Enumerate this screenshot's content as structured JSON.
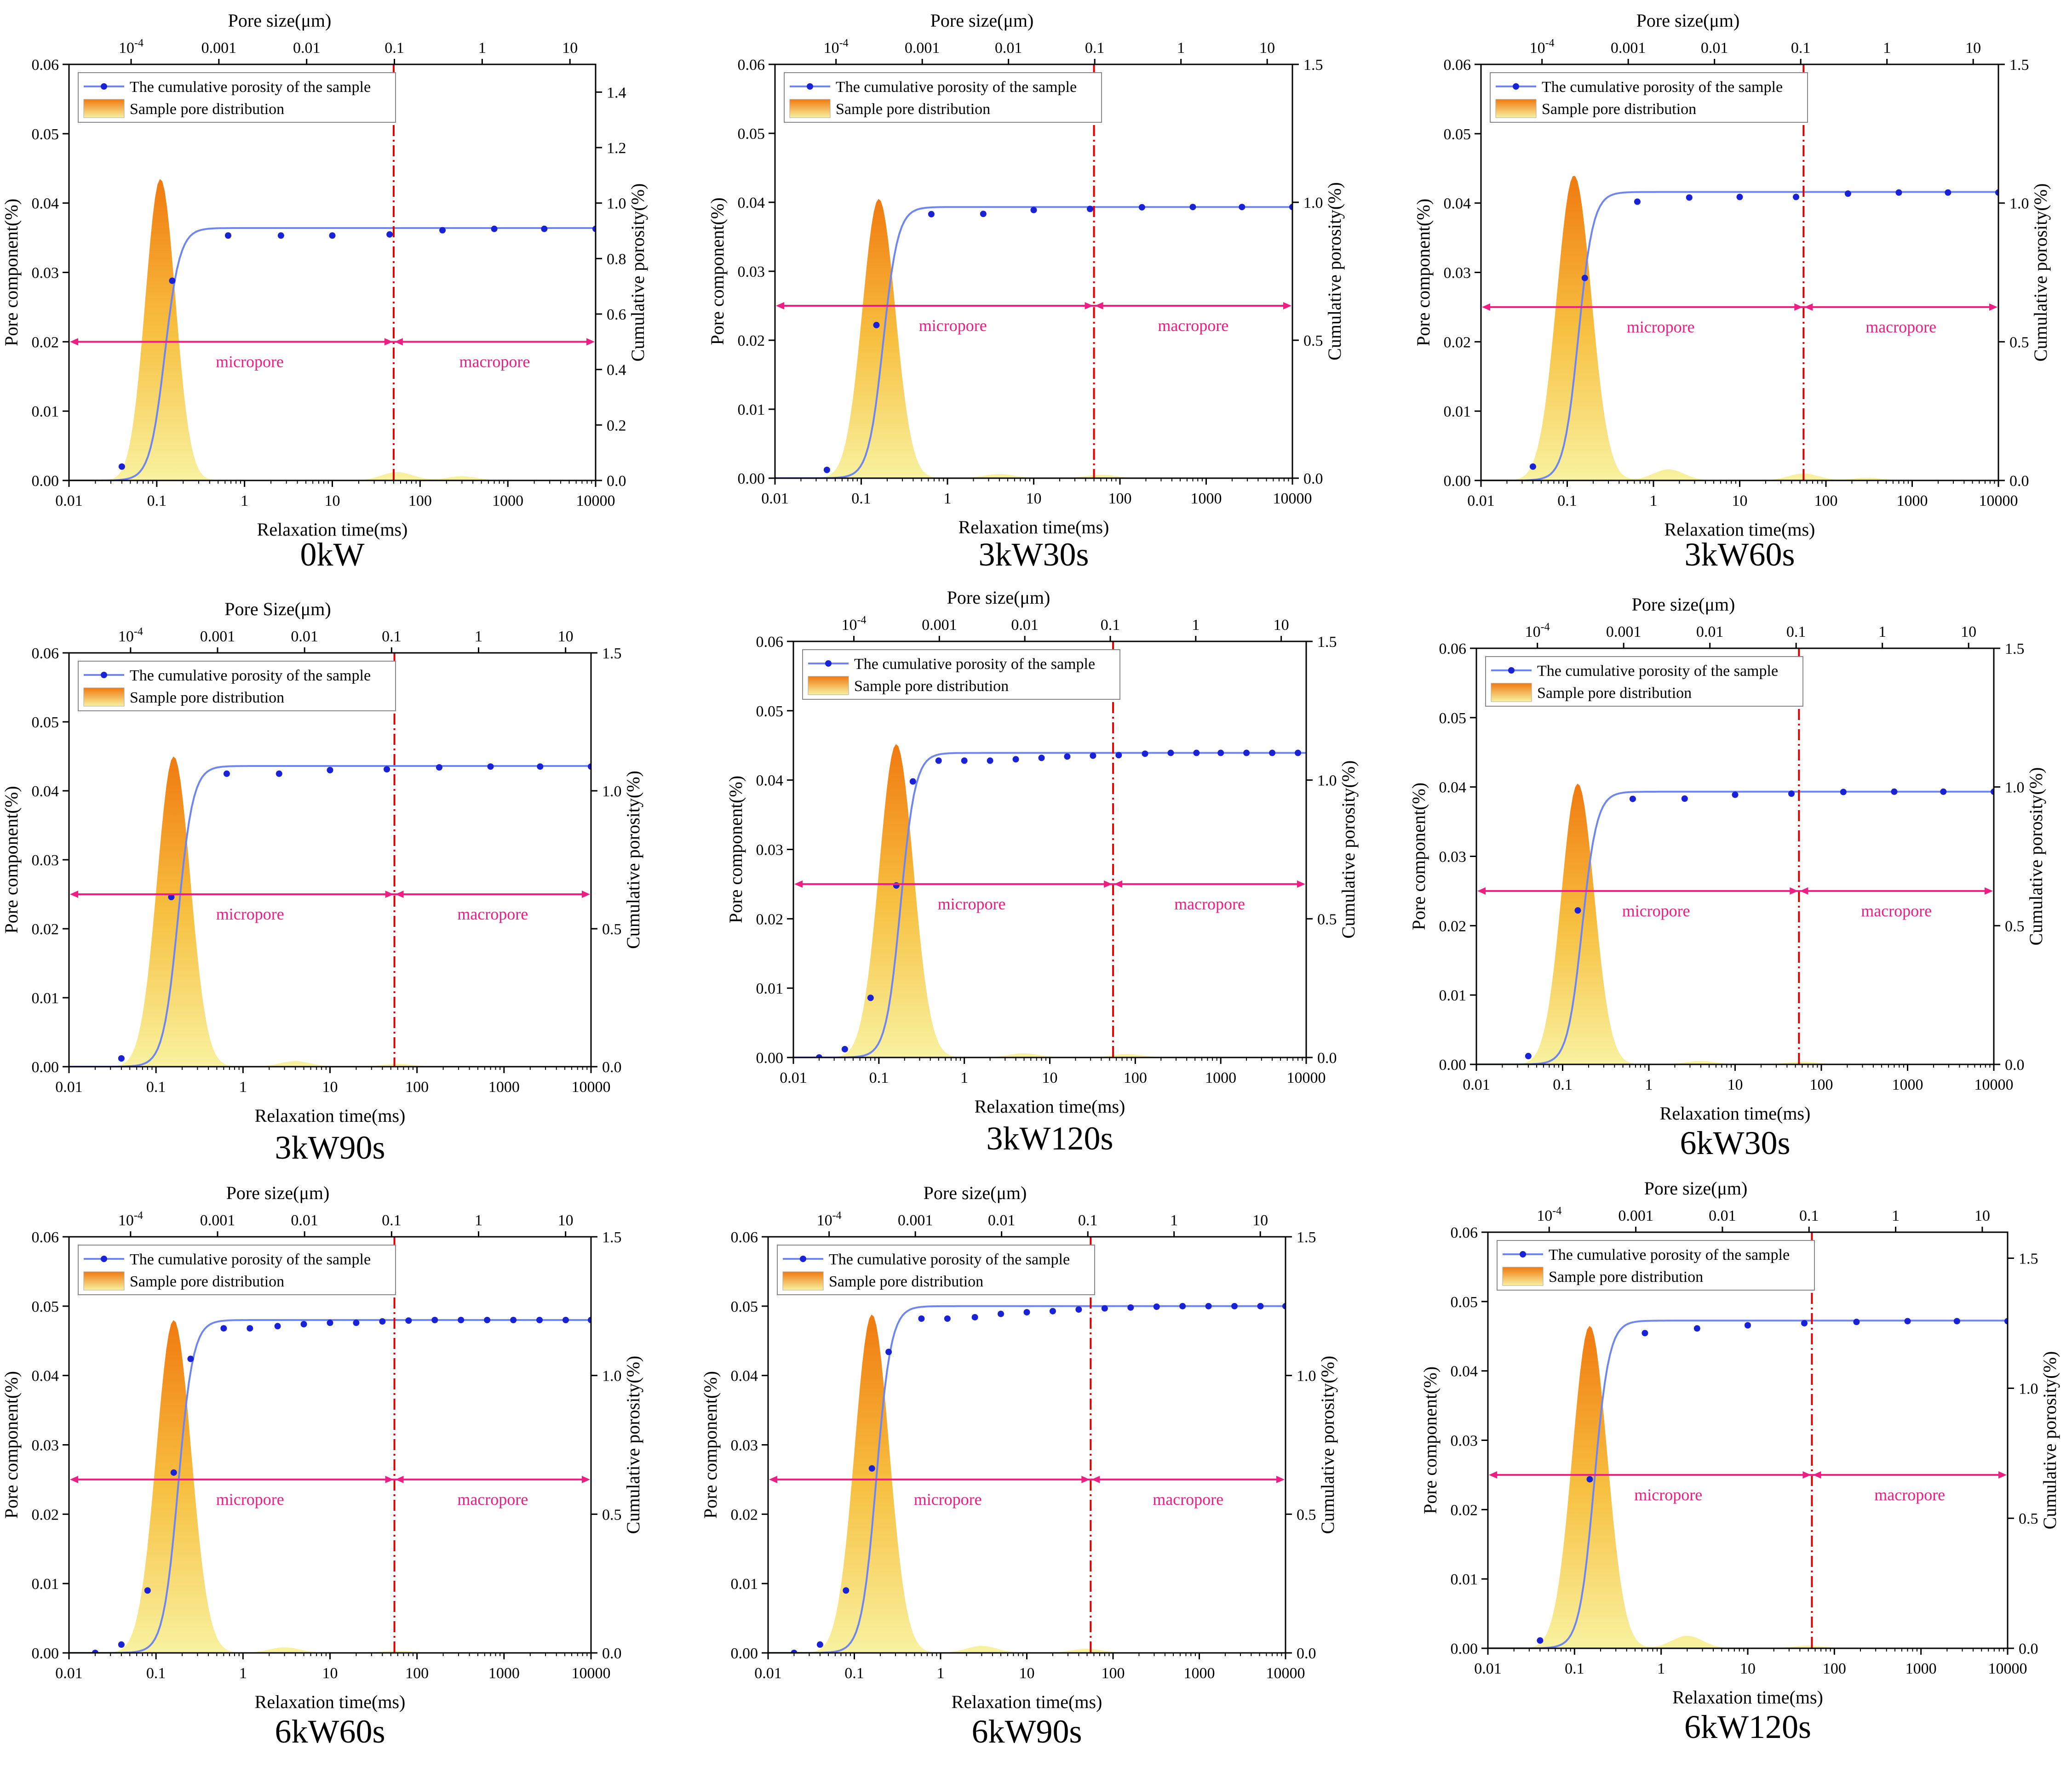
{
  "chart_data": [
    {
      "type": "area+line",
      "panel_label": "0kW",
      "top_axis_title": "Pore size(μm)",
      "top_ticks": [
        "10-4",
        "0.001",
        "0.01",
        "0.1",
        "1",
        "10"
      ],
      "xlabel": "Relaxation time(ms)",
      "x_scale": "log",
      "xlim": [
        0.01,
        10000
      ],
      "x_ticks": [
        "0.01",
        "0.1",
        "1",
        "10",
        "100",
        "1000",
        "10000"
      ],
      "ylabel_left": "Pore component(%)",
      "ylim_left": [
        0,
        0.06
      ],
      "y_ticks_left": [
        "0.00",
        "0.01",
        "0.02",
        "0.03",
        "0.04",
        "0.05",
        "0.06"
      ],
      "ylabel_right": "Cumulative porosity(%)",
      "ylim_right": [
        0,
        1.5
      ],
      "y_ticks_right": [
        "0.0",
        "0.2",
        "0.4",
        "0.6",
        "0.8",
        "1.0",
        "1.2",
        "1.4"
      ],
      "legend": [
        "The cumulative porosity of the sample",
        "Sample pore distribution"
      ],
      "divider_x": 50,
      "arrow_y": 0.02,
      "labels": [
        "micropore",
        "macropore"
      ],
      "peak_x": 0.11,
      "peak_y": 0.0435,
      "peak_width": 0.17,
      "small_peaks": [
        [
          55,
          0.0012
        ],
        [
          300,
          0.0006
        ]
      ],
      "cumulative_final": 0.91,
      "cumulative_points": [
        [
          0.04,
          0.05
        ],
        [
          0.15,
          0.72
        ],
        [
          0.65,
          0.883
        ],
        [
          2.6,
          0.883
        ],
        [
          10,
          0.883
        ],
        [
          45,
          0.887
        ],
        [
          180,
          0.902
        ],
        [
          700,
          0.907
        ],
        [
          2600,
          0.907
        ],
        [
          10000,
          0.907
        ]
      ]
    },
    {
      "type": "area+line",
      "panel_label": "3kW30s",
      "top_axis_title": "Pore size(μm)",
      "top_ticks": [
        "10-4",
        "0.001",
        "0.01",
        "0.1",
        "1",
        "10"
      ],
      "xlabel": "Relaxation time(ms)",
      "x_scale": "log",
      "xlim": [
        0.01,
        10000
      ],
      "x_ticks": [
        "0.01",
        "0.1",
        "1",
        "10",
        "100",
        "1000",
        "10000"
      ],
      "ylabel_left": "Pore component(%)",
      "ylim_left": [
        0,
        0.06
      ],
      "y_ticks_left": [
        "0.00",
        "0.01",
        "0.02",
        "0.03",
        "0.04",
        "0.05",
        "0.06"
      ],
      "ylabel_right": "Cumulative porosity(%)",
      "ylim_right": [
        0,
        1.5
      ],
      "y_ticks_right": [
        "0.0",
        "0.5",
        "1.0",
        "1.5"
      ],
      "legend": [
        "The cumulative porosity of the sample",
        "Sample pore distribution"
      ],
      "divider_x": 50,
      "arrow_y": 0.025,
      "labels": [
        "micropore",
        "macropore"
      ],
      "peak_x": 0.16,
      "peak_y": 0.0405,
      "peak_width": 0.19,
      "small_peaks": [
        [
          4,
          0.0006
        ],
        [
          60,
          0.0005
        ]
      ],
      "cumulative_final": 0.983,
      "cumulative_points": [
        [
          0.04,
          0.03
        ],
        [
          0.15,
          0.555
        ],
        [
          0.65,
          0.957
        ],
        [
          2.6,
          0.958
        ],
        [
          10,
          0.972
        ],
        [
          45,
          0.976
        ],
        [
          180,
          0.982
        ],
        [
          700,
          0.983
        ],
        [
          2600,
          0.983
        ],
        [
          10000,
          0.983
        ]
      ]
    },
    {
      "type": "area+line",
      "panel_label": "3kW60s",
      "top_axis_title": "Pore size(μm)",
      "top_ticks": [
        "10-4",
        "0.001",
        "0.01",
        "0.1",
        "1",
        "10"
      ],
      "xlabel": "Relaxation time(ms)",
      "x_scale": "log",
      "xlim": [
        0.01,
        10000
      ],
      "x_ticks": [
        "0.01",
        "0.1",
        "1",
        "10",
        "100",
        "1000",
        "10000"
      ],
      "ylabel_left": "Pore component(%)",
      "ylim_left": [
        0,
        0.06
      ],
      "y_ticks_left": [
        "0.00",
        "0.01",
        "0.02",
        "0.03",
        "0.04",
        "0.05",
        "0.06"
      ],
      "ylabel_right": "Cumulative porosity(%)",
      "ylim_right": [
        0,
        1.5
      ],
      "y_ticks_right": [
        "0.0",
        "0.5",
        "1.0",
        "1.5"
      ],
      "legend": [
        "The cumulative porosity of the sample",
        "Sample pore distribution"
      ],
      "divider_x": 55,
      "arrow_y": 0.025,
      "labels": [
        "micropore",
        "macropore"
      ],
      "peak_x": 0.12,
      "peak_y": 0.044,
      "peak_width": 0.2,
      "small_peaks": [
        [
          1.5,
          0.0016
        ],
        [
          55,
          0.001
        ],
        [
          300,
          0.0004
        ]
      ],
      "cumulative_final": 1.04,
      "cumulative_points": [
        [
          0.04,
          0.05
        ],
        [
          0.16,
          0.73
        ],
        [
          0.65,
          1.005
        ],
        [
          2.6,
          1.02
        ],
        [
          10,
          1.022
        ],
        [
          45,
          1.022
        ],
        [
          180,
          1.034
        ],
        [
          700,
          1.038
        ],
        [
          2600,
          1.038
        ],
        [
          10000,
          1.038
        ]
      ]
    },
    {
      "type": "area+line",
      "panel_label": "3kW90s",
      "top_axis_title": "Pore Size(μm)",
      "top_ticks": [
        "10-4",
        "0.001",
        "0.01",
        "0.1",
        "1",
        "10"
      ],
      "xlabel": "Relaxation time(ms)",
      "x_scale": "log",
      "xlim": [
        0.01,
        10000
      ],
      "x_ticks": [
        "0.01",
        "0.1",
        "1",
        "10",
        "100",
        "1000",
        "10000"
      ],
      "ylabel_left": "Pore component(%)",
      "ylim_left": [
        0,
        0.06
      ],
      "y_ticks_left": [
        "0.00",
        "0.01",
        "0.02",
        "0.03",
        "0.04",
        "0.05",
        "0.06"
      ],
      "ylabel_right": "Cumulative porosity(%)",
      "ylim_right": [
        0,
        1.5
      ],
      "y_ticks_right": [
        "0.0",
        "0.5",
        "1.0",
        "1.5"
      ],
      "legend": [
        "The cumulative porosity of the sample",
        "Sample pore distribution"
      ],
      "divider_x": 55,
      "arrow_y": 0.025,
      "labels": [
        "micropore",
        "macropore"
      ],
      "peak_x": 0.16,
      "peak_y": 0.045,
      "peak_width": 0.19,
      "small_peaks": [
        [
          4,
          0.0008
        ],
        [
          60,
          0.0004
        ]
      ],
      "cumulative_final": 1.09,
      "cumulative_points": [
        [
          0.04,
          0.03
        ],
        [
          0.15,
          0.615
        ],
        [
          0.65,
          1.062
        ],
        [
          2.6,
          1.062
        ],
        [
          10,
          1.075
        ],
        [
          45,
          1.078
        ],
        [
          180,
          1.085
        ],
        [
          700,
          1.088
        ],
        [
          2600,
          1.088
        ],
        [
          10000,
          1.088
        ]
      ]
    },
    {
      "type": "area+line",
      "panel_label": "3kW120s",
      "top_axis_title": "Pore size(μm)",
      "top_ticks": [
        "10-4",
        "0.001",
        "0.01",
        "0.1",
        "1",
        "10"
      ],
      "xlabel": "Relaxation time(ms)",
      "x_scale": "log",
      "xlim": [
        0.01,
        10000
      ],
      "x_ticks": [
        "0.01",
        "0.1",
        "1",
        "10",
        "100",
        "1000",
        "10000"
      ],
      "ylabel_left": "Pore component(%)",
      "ylim_left": [
        0,
        0.06
      ],
      "y_ticks_left": [
        "0.00",
        "0.01",
        "0.02",
        "0.03",
        "0.04",
        "0.05",
        "0.06"
      ],
      "ylabel_right": "Cumulative porosity(%)",
      "ylim_right": [
        0,
        1.5
      ],
      "y_ticks_right": [
        "0.0",
        "0.5",
        "1.0",
        "1.5"
      ],
      "legend": [
        "The cumulative porosity of the sample",
        "Sample pore distribution"
      ],
      "divider_x": 55,
      "arrow_y": 0.025,
      "labels": [
        "micropore",
        "macropore"
      ],
      "peak_x": 0.16,
      "peak_y": 0.0452,
      "peak_width": 0.2,
      "small_peaks": [
        [
          5,
          0.0006
        ],
        [
          80,
          0.0005
        ]
      ],
      "cumulative_final": 1.098,
      "cumulative_points": [
        [
          0.02,
          0.0
        ],
        [
          0.04,
          0.03
        ],
        [
          0.08,
          0.215
        ],
        [
          0.16,
          0.62
        ],
        [
          0.25,
          0.995
        ],
        [
          0.5,
          1.07
        ],
        [
          1,
          1.07
        ],
        [
          2,
          1.07
        ],
        [
          4,
          1.075
        ],
        [
          8,
          1.08
        ],
        [
          16,
          1.085
        ],
        [
          32,
          1.088
        ],
        [
          64,
          1.09
        ],
        [
          130,
          1.095
        ],
        [
          260,
          1.098
        ],
        [
          520,
          1.098
        ],
        [
          1000,
          1.098
        ],
        [
          2000,
          1.098
        ],
        [
          4000,
          1.098
        ],
        [
          8000,
          1.098
        ]
      ]
    },
    {
      "type": "area+line",
      "panel_label": "6kW30s",
      "top_axis_title": "Pore size(μm)",
      "top_ticks": [
        "10-4",
        "0.001",
        "0.01",
        "0.1",
        "1",
        "10"
      ],
      "xlabel": "Relaxation time(ms)",
      "x_scale": "log",
      "xlim": [
        0.01,
        10000
      ],
      "x_ticks": [
        "0.01",
        "0.1",
        "1",
        "10",
        "100",
        "1000",
        "10000"
      ],
      "ylabel_left": "Pore component(%)",
      "ylim_left": [
        0,
        0.06
      ],
      "y_ticks_left": [
        "0.00",
        "0.01",
        "0.02",
        "0.03",
        "0.04",
        "0.05",
        "0.06"
      ],
      "ylabel_right": "Cumulative porosity(%)",
      "ylim_right": [
        0,
        1.5
      ],
      "y_ticks_right": [
        "0.0",
        "0.5",
        "1.0",
        "1.5"
      ],
      "legend": [
        "The cumulative porosity of the sample",
        "Sample pore distribution"
      ],
      "divider_x": 55,
      "arrow_y": 0.025,
      "labels": [
        "micropore",
        "macropore"
      ],
      "peak_x": 0.15,
      "peak_y": 0.0405,
      "peak_width": 0.19,
      "small_peaks": [
        [
          4,
          0.0005
        ],
        [
          60,
          0.0004
        ]
      ],
      "cumulative_final": 0.983,
      "cumulative_points": [
        [
          0.04,
          0.03
        ],
        [
          0.15,
          0.555
        ],
        [
          0.65,
          0.957
        ],
        [
          2.6,
          0.958
        ],
        [
          10,
          0.972
        ],
        [
          45,
          0.976
        ],
        [
          180,
          0.982
        ],
        [
          700,
          0.983
        ],
        [
          2600,
          0.983
        ],
        [
          10000,
          0.983
        ]
      ]
    },
    {
      "type": "area+line",
      "panel_label": "6kW60s",
      "top_axis_title": "Pore size(μm)",
      "top_ticks": [
        "10-4",
        "0.001",
        "0.01",
        "0.1",
        "1",
        "10"
      ],
      "xlabel": "Relaxation time(ms)",
      "x_scale": "log",
      "xlim": [
        0.01,
        10000
      ],
      "x_ticks": [
        "0.01",
        "0.1",
        "1",
        "10",
        "100",
        "1000",
        "10000"
      ],
      "ylabel_left": "Pore component(%)",
      "ylim_left": [
        0,
        0.06
      ],
      "y_ticks_left": [
        "0.00",
        "0.01",
        "0.02",
        "0.03",
        "0.04",
        "0.05",
        "0.06"
      ],
      "ylabel_right": "Cumulative porosity(%)",
      "ylim_right": [
        0,
        1.5
      ],
      "y_ticks_right": [
        "0.0",
        "0.5",
        "1.0",
        "1.5"
      ],
      "legend": [
        "The cumulative porosity of the sample",
        "Sample pore distribution"
      ],
      "divider_x": 55,
      "arrow_y": 0.025,
      "labels": [
        "micropore",
        "macropore"
      ],
      "peak_x": 0.16,
      "peak_y": 0.048,
      "peak_width": 0.2,
      "small_peaks": [
        [
          3,
          0.0008
        ],
        [
          60,
          0.0003
        ]
      ],
      "cumulative_final": 1.2,
      "cumulative_points": [
        [
          0.02,
          0.0
        ],
        [
          0.04,
          0.03
        ],
        [
          0.08,
          0.225
        ],
        [
          0.16,
          0.65
        ],
        [
          0.25,
          1.06
        ],
        [
          0.6,
          1.17
        ],
        [
          1.2,
          1.17
        ],
        [
          2.5,
          1.178
        ],
        [
          5,
          1.185
        ],
        [
          10,
          1.19
        ],
        [
          20,
          1.19
        ],
        [
          40,
          1.195
        ],
        [
          80,
          1.198
        ],
        [
          160,
          1.2
        ],
        [
          320,
          1.2
        ],
        [
          640,
          1.2
        ],
        [
          1280,
          1.2
        ],
        [
          2560,
          1.2
        ],
        [
          5120,
          1.2
        ],
        [
          10000,
          1.2
        ]
      ]
    },
    {
      "type": "area+line",
      "panel_label": "6kW90s",
      "top_axis_title": "Pore size(μm)",
      "top_ticks": [
        "10-4",
        "0.001",
        "0.01",
        "0.1",
        "1",
        "10"
      ],
      "xlabel": "Relaxation time(ms)",
      "x_scale": "log",
      "xlim": [
        0.01,
        10000
      ],
      "x_ticks": [
        "0.01",
        "0.1",
        "1",
        "10",
        "100",
        "1000",
        "10000"
      ],
      "ylabel_left": "Pore component(%)",
      "ylim_left": [
        0,
        0.06
      ],
      "y_ticks_left": [
        "0.00",
        "0.01",
        "0.02",
        "0.03",
        "0.04",
        "0.05",
        "0.06"
      ],
      "ylabel_right": "Cumulative porosity(%)",
      "ylim_right": [
        0,
        1.5
      ],
      "y_ticks_right": [
        "0.0",
        "0.5",
        "1.0",
        "1.5"
      ],
      "legend": [
        "The cumulative porosity of the sample",
        "Sample pore distribution"
      ],
      "divider_x": 55,
      "arrow_y": 0.025,
      "labels": [
        "micropore",
        "macropore"
      ],
      "peak_x": 0.16,
      "peak_y": 0.0488,
      "peak_width": 0.2,
      "small_peaks": [
        [
          3,
          0.001
        ],
        [
          50,
          0.0006
        ]
      ],
      "cumulative_final": 1.25,
      "cumulative_points": [
        [
          0.02,
          0.0
        ],
        [
          0.04,
          0.03
        ],
        [
          0.08,
          0.225
        ],
        [
          0.16,
          0.665
        ],
        [
          0.25,
          1.085
        ],
        [
          0.6,
          1.205
        ],
        [
          1.2,
          1.205
        ],
        [
          2.5,
          1.21
        ],
        [
          5,
          1.222
        ],
        [
          10,
          1.228
        ],
        [
          20,
          1.232
        ],
        [
          40,
          1.238
        ],
        [
          80,
          1.242
        ],
        [
          160,
          1.245
        ],
        [
          320,
          1.248
        ],
        [
          640,
          1.25
        ],
        [
          1280,
          1.25
        ],
        [
          2560,
          1.25
        ],
        [
          5120,
          1.25
        ],
        [
          10000,
          1.25
        ]
      ]
    },
    {
      "type": "area+line",
      "panel_label": "6kW120s",
      "top_axis_title": "Pore size(μm)",
      "top_ticks": [
        "10-4",
        "0.001",
        "0.01",
        "0.1",
        "1",
        "10"
      ],
      "xlabel": "Relaxation time(ms)",
      "x_scale": "log",
      "xlim": [
        0.01,
        10000
      ],
      "x_ticks": [
        "0.01",
        "0.1",
        "1",
        "10",
        "100",
        "1000",
        "10000"
      ],
      "ylabel_left": "Pore component(%)",
      "ylim_left": [
        0,
        0.06
      ],
      "y_ticks_left": [
        "0.00",
        "0.01",
        "0.02",
        "0.03",
        "0.04",
        "0.05",
        "0.06"
      ],
      "ylabel_right": "Cumulative porosity(%)",
      "ylim_right": [
        0,
        1.6
      ],
      "y_ticks_right": [
        "0.0",
        "0.5",
        "1.0",
        "1.5"
      ],
      "legend": [
        "The cumulative porosity of the sample",
        "Sample pore distribution"
      ],
      "divider_x": 55,
      "arrow_y": 0.025,
      "labels": [
        "micropore",
        "macropore"
      ],
      "peak_x": 0.15,
      "peak_y": 0.0465,
      "peak_width": 0.2,
      "small_peaks": [
        [
          2,
          0.0018
        ],
        [
          50,
          0.0004
        ]
      ],
      "cumulative_final": 1.26,
      "cumulative_points": [
        [
          0.04,
          0.03
        ],
        [
          0.15,
          0.65
        ],
        [
          0.65,
          1.212
        ],
        [
          2.6,
          1.23
        ],
        [
          10,
          1.242
        ],
        [
          45,
          1.25
        ],
        [
          180,
          1.255
        ],
        [
          700,
          1.258
        ],
        [
          2600,
          1.258
        ],
        [
          10000,
          1.258
        ]
      ]
    }
  ],
  "colors": {
    "curve": "#6f86f0",
    "points": "#1a22d6",
    "divider": "#e00000",
    "arrow": "#ef1e82",
    "peak_top": "#f07a10",
    "peak_bottom": "#f8f2a0"
  }
}
